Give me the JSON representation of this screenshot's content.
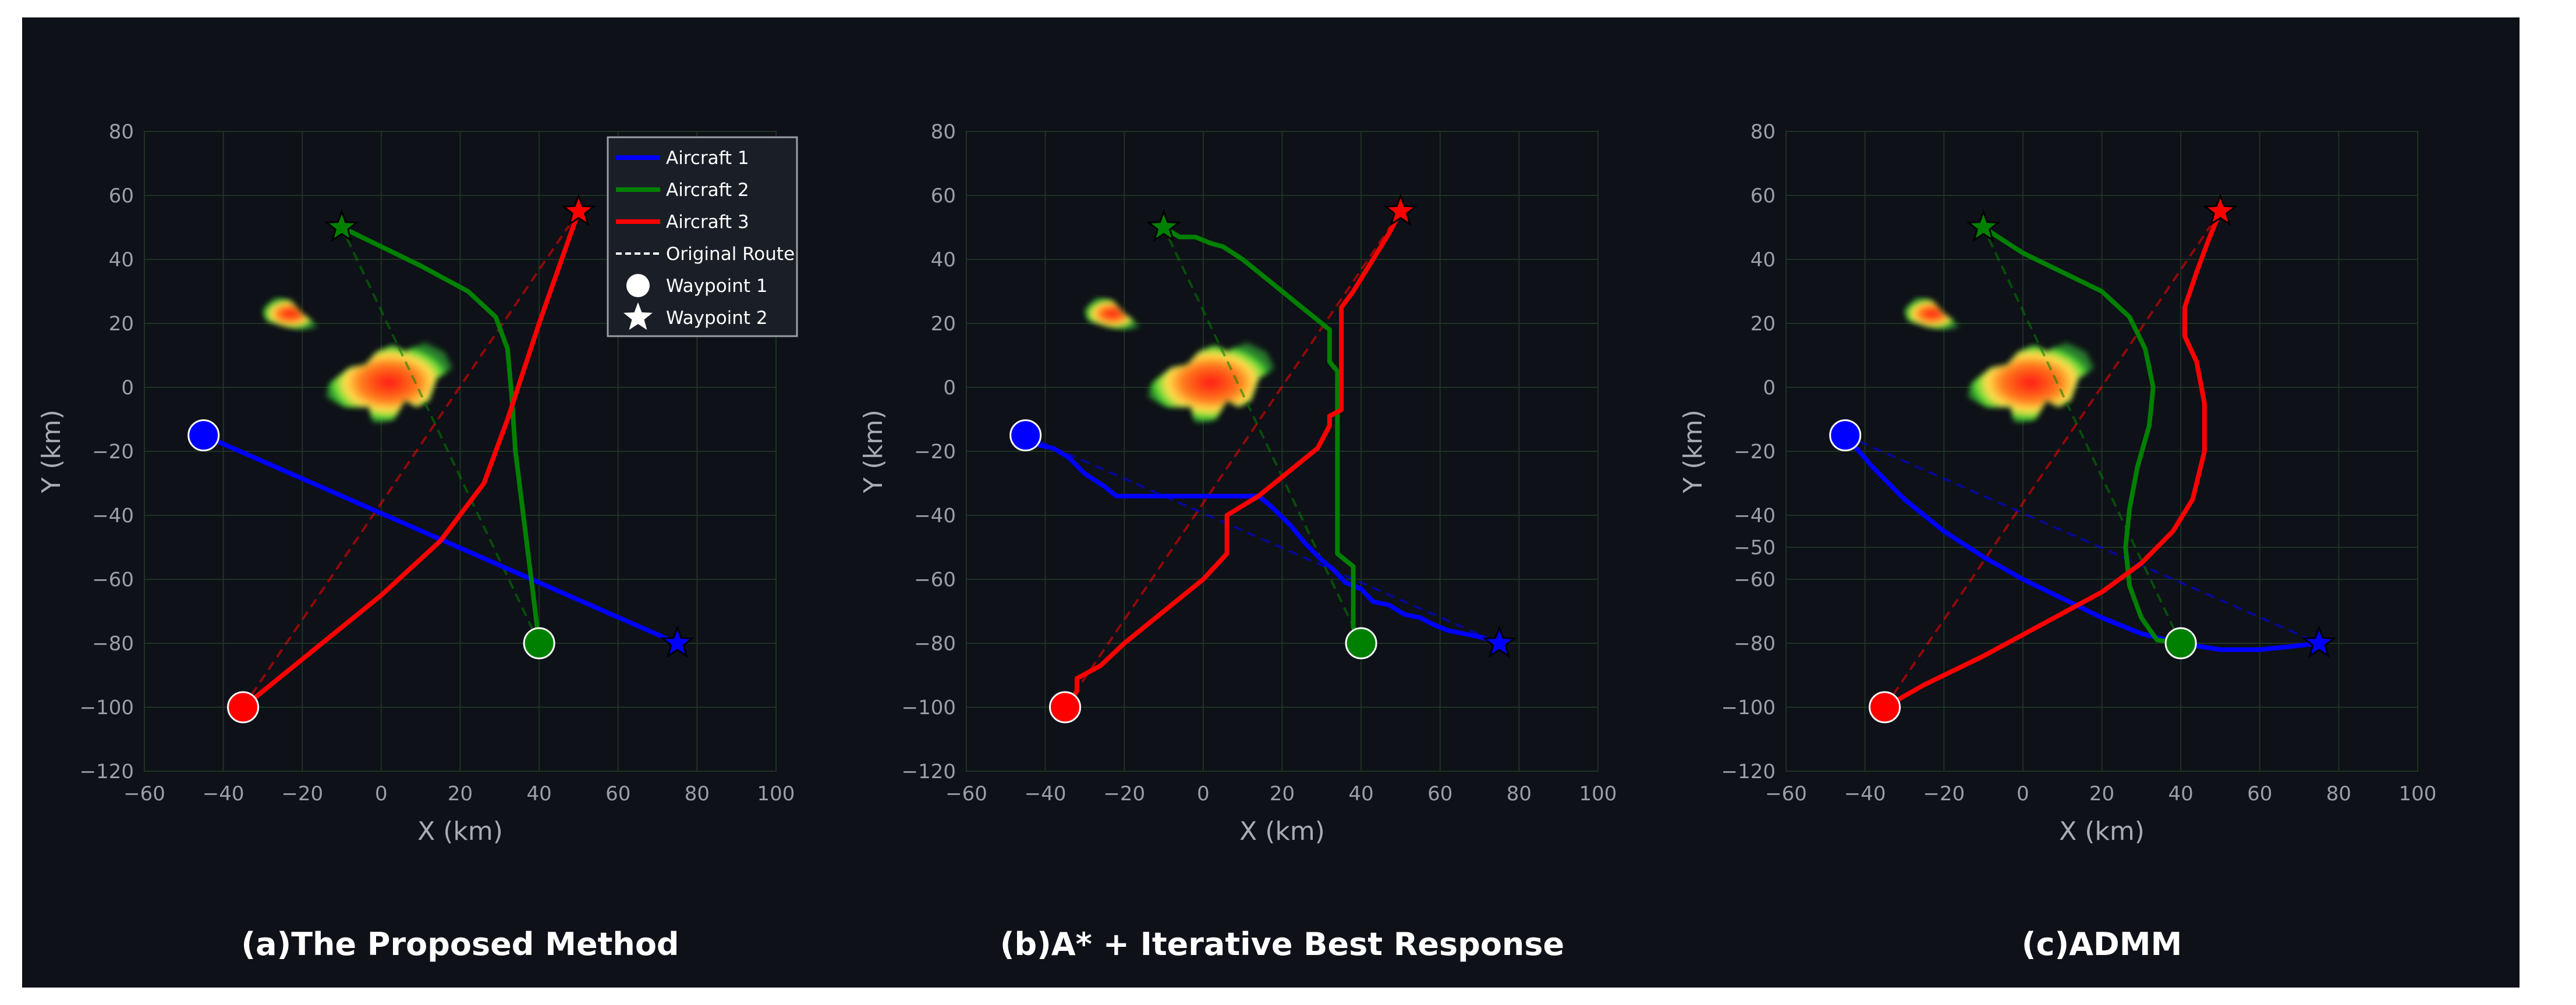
{
  "chart_data": [
    {
      "type": "line",
      "caption": "(a)The Proposed Method",
      "xlabel": "X (km)",
      "ylabel": "Y (km)",
      "xlim": [
        -60,
        100
      ],
      "ylim": [
        -120,
        80
      ],
      "xticks": [
        -60,
        -40,
        -20,
        0,
        20,
        40,
        60,
        80,
        100
      ],
      "yticks": [
        -120,
        -100,
        -80,
        -60,
        -40,
        -20,
        0,
        20,
        40,
        60,
        80
      ],
      "grid": true,
      "legend_position": "upper-right",
      "legend": [
        "Aircraft 1",
        "Aircraft 2",
        "Aircraft 3",
        "Original Route",
        "Waypoint 1",
        "Waypoint 2"
      ],
      "series": [
        {
          "name": "Aircraft 1",
          "color": "#0000ff",
          "waypoint1": [
            -45,
            -15
          ],
          "waypoint2": [
            75,
            -80
          ],
          "path": [
            [
              -45,
              -15
            ],
            [
              75,
              -80
            ]
          ]
        },
        {
          "name": "Aircraft 2",
          "color": "#008000",
          "waypoint1": [
            40,
            -80
          ],
          "waypoint2": [
            -10,
            50
          ],
          "path": [
            [
              -10,
              50
            ],
            [
              10,
              38
            ],
            [
              22,
              30
            ],
            [
              29,
              22
            ],
            [
              32,
              12
            ],
            [
              33,
              -2
            ],
            [
              34,
              -20
            ],
            [
              36,
              -40
            ],
            [
              38,
              -60
            ],
            [
              40,
              -80
            ]
          ]
        },
        {
          "name": "Aircraft 3",
          "color": "#ff0000",
          "waypoint1": [
            -35,
            -100
          ],
          "waypoint2": [
            50,
            55
          ],
          "path": [
            [
              -35,
              -100
            ],
            [
              -20,
              -85
            ],
            [
              0,
              -65
            ],
            [
              15,
              -48
            ],
            [
              26,
              -30
            ],
            [
              32,
              -10
            ],
            [
              40,
              20
            ],
            [
              50,
              55
            ]
          ]
        }
      ]
    },
    {
      "type": "line",
      "caption": "(b)A* + Iterative Best Response",
      "xlabel": "X (km)",
      "ylabel": "Y (km)",
      "xlim": [
        -60,
        100
      ],
      "ylim": [
        -120,
        80
      ],
      "xticks": [
        -60,
        -40,
        -20,
        0,
        20,
        40,
        60,
        80,
        100
      ],
      "yticks": [
        -120,
        -100,
        -80,
        -60,
        -40,
        -20,
        0,
        20,
        40,
        60,
        80
      ],
      "grid": true,
      "series": [
        {
          "name": "Aircraft 1",
          "color": "#0000ff",
          "waypoint1": [
            -45,
            -15
          ],
          "waypoint2": [
            75,
            -80
          ],
          "path": [
            [
              -45,
              -15
            ],
            [
              -42,
              -18
            ],
            [
              -38,
              -19
            ],
            [
              -34,
              -22
            ],
            [
              -30,
              -27
            ],
            [
              -25,
              -31
            ],
            [
              -22,
              -34
            ],
            [
              0,
              -34
            ],
            [
              14,
              -34
            ],
            [
              17,
              -37
            ],
            [
              22,
              -43
            ],
            [
              26,
              -49
            ],
            [
              30,
              -54
            ],
            [
              33,
              -57
            ],
            [
              36,
              -61
            ],
            [
              40,
              -63
            ],
            [
              43,
              -67
            ],
            [
              47,
              -68
            ],
            [
              51,
              -71
            ],
            [
              55,
              -72
            ],
            [
              58,
              -74
            ],
            [
              62,
              -76
            ],
            [
              66,
              -77
            ],
            [
              70,
              -78
            ],
            [
              75,
              -80
            ]
          ]
        },
        {
          "name": "Aircraft 2",
          "color": "#008000",
          "waypoint1": [
            40,
            -80
          ],
          "waypoint2": [
            -10,
            50
          ],
          "path": [
            [
              -10,
              50
            ],
            [
              -6,
              47
            ],
            [
              -2,
              47
            ],
            [
              2,
              45
            ],
            [
              5,
              44
            ],
            [
              10,
              40
            ],
            [
              17,
              33
            ],
            [
              25,
              25
            ],
            [
              32,
              18
            ],
            [
              32,
              8
            ],
            [
              34,
              5
            ],
            [
              34,
              -52
            ],
            [
              38,
              -56
            ],
            [
              38,
              -75
            ],
            [
              40,
              -80
            ]
          ]
        },
        {
          "name": "Aircraft 3",
          "color": "#ff0000",
          "waypoint1": [
            -35,
            -100
          ],
          "waypoint2": [
            50,
            55
          ],
          "path": [
            [
              -35,
              -100
            ],
            [
              -32,
              -95
            ],
            [
              -32,
              -91
            ],
            [
              -26,
              -87
            ],
            [
              -20,
              -80
            ],
            [
              -10,
              -70
            ],
            [
              0,
              -60
            ],
            [
              6,
              -52
            ],
            [
              6,
              -40
            ],
            [
              14,
              -34
            ],
            [
              22,
              -26
            ],
            [
              29,
              -19
            ],
            [
              32,
              -12
            ],
            [
              32,
              -9
            ],
            [
              35,
              -7
            ],
            [
              35,
              25
            ],
            [
              38,
              30
            ],
            [
              41,
              36
            ],
            [
              44,
              42
            ],
            [
              47,
              48
            ],
            [
              50,
              55
            ]
          ]
        }
      ]
    },
    {
      "type": "line",
      "caption": "(c)ADMM",
      "xlabel": "X (km)",
      "ylabel": "Y (km)",
      "xlim": [
        -60,
        100
      ],
      "ylim": [
        -120,
        80
      ],
      "xticks": [
        -60,
        -40,
        -20,
        0,
        20,
        40,
        60,
        80,
        100
      ],
      "yticks": [
        -120,
        -100,
        -80,
        -60,
        -50,
        -40,
        -20,
        0,
        20,
        40,
        60,
        80
      ],
      "ytick_labels": [
        "−120",
        "−100",
        "−80",
        "−60",
        "−50",
        "−40",
        "−20",
        "0",
        "20",
        "40",
        "60",
        "80"
      ],
      "grid": true,
      "series": [
        {
          "name": "Aircraft 1",
          "color": "#0000ff",
          "waypoint1": [
            -45,
            -15
          ],
          "waypoint2": [
            75,
            -80
          ],
          "path": [
            [
              -45,
              -15
            ],
            [
              -38,
              -25
            ],
            [
              -30,
              -35
            ],
            [
              -20,
              -45
            ],
            [
              -10,
              -53
            ],
            [
              0,
              -60
            ],
            [
              10,
              -66
            ],
            [
              20,
              -72
            ],
            [
              30,
              -77
            ],
            [
              40,
              -80
            ],
            [
              50,
              -82
            ],
            [
              60,
              -82
            ],
            [
              68,
              -81
            ],
            [
              75,
              -80
            ]
          ]
        },
        {
          "name": "Aircraft 2",
          "color": "#008000",
          "waypoint1": [
            40,
            -80
          ],
          "waypoint2": [
            -10,
            50
          ],
          "path": [
            [
              -10,
              50
            ],
            [
              0,
              42
            ],
            [
              10,
              36
            ],
            [
              20,
              30
            ],
            [
              27,
              22
            ],
            [
              31,
              12
            ],
            [
              33,
              0
            ],
            [
              32,
              -12
            ],
            [
              29,
              -25
            ],
            [
              27,
              -38
            ],
            [
              26,
              -50
            ],
            [
              27,
              -62
            ],
            [
              30,
              -72
            ],
            [
              34,
              -79
            ],
            [
              40,
              -80
            ]
          ]
        },
        {
          "name": "Aircraft 3",
          "color": "#ff0000",
          "waypoint1": [
            -35,
            -100
          ],
          "waypoint2": [
            50,
            55
          ],
          "path": [
            [
              -35,
              -100
            ],
            [
              -25,
              -93
            ],
            [
              -10,
              -84
            ],
            [
              5,
              -74
            ],
            [
              20,
              -64
            ],
            [
              30,
              -55
            ],
            [
              38,
              -45
            ],
            [
              43,
              -35
            ],
            [
              46,
              -20
            ],
            [
              46,
              -5
            ],
            [
              44,
              8
            ],
            [
              41,
              16
            ],
            [
              41,
              25
            ],
            [
              44,
              36
            ],
            [
              47,
              46
            ],
            [
              50,
              55
            ]
          ]
        }
      ]
    }
  ],
  "obstacle_colors": {
    "outer": "#33cc33",
    "mid": "#ffe04d",
    "inner": "#ff2020"
  }
}
